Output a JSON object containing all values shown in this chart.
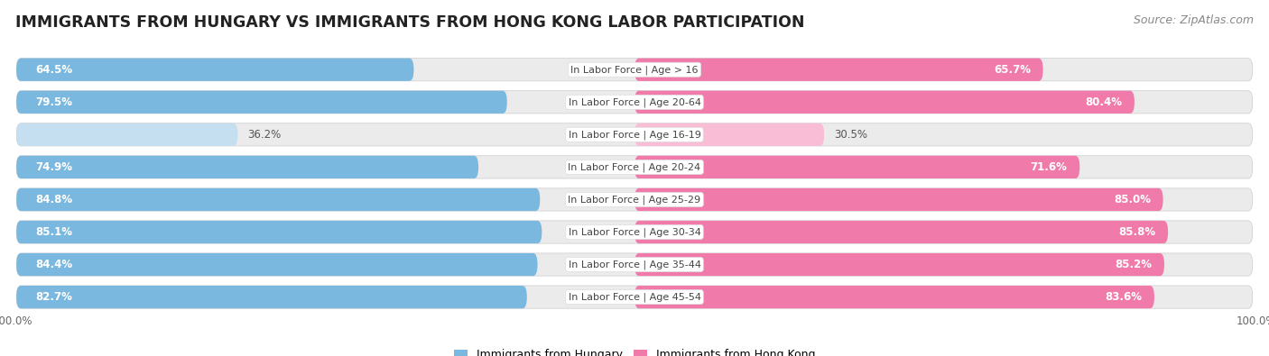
{
  "title": "IMMIGRANTS FROM HUNGARY VS IMMIGRANTS FROM HONG KONG LABOR PARTICIPATION",
  "source": "Source: ZipAtlas.com",
  "categories": [
    "In Labor Force | Age > 16",
    "In Labor Force | Age 20-64",
    "In Labor Force | Age 16-19",
    "In Labor Force | Age 20-24",
    "In Labor Force | Age 25-29",
    "In Labor Force | Age 30-34",
    "In Labor Force | Age 35-44",
    "In Labor Force | Age 45-54"
  ],
  "hungary_values": [
    64.5,
    79.5,
    36.2,
    74.9,
    84.8,
    85.1,
    84.4,
    82.7
  ],
  "hongkong_values": [
    65.7,
    80.4,
    30.5,
    71.6,
    85.0,
    85.8,
    85.2,
    83.6
  ],
  "hungary_color": "#7ab8e0",
  "hungary_color_light": "#c5dff0",
  "hongkong_color": "#f07aaa",
  "hongkong_color_light": "#f9bdd6",
  "row_bg_color": "#ebebeb",
  "bg_color": "#ffffff",
  "legend_hungary": "Immigrants from Hungary",
  "legend_hongkong": "Immigrants from Hong Kong",
  "title_fontsize": 12.5,
  "source_fontsize": 9,
  "category_fontsize": 8,
  "value_fontsize": 8.5
}
